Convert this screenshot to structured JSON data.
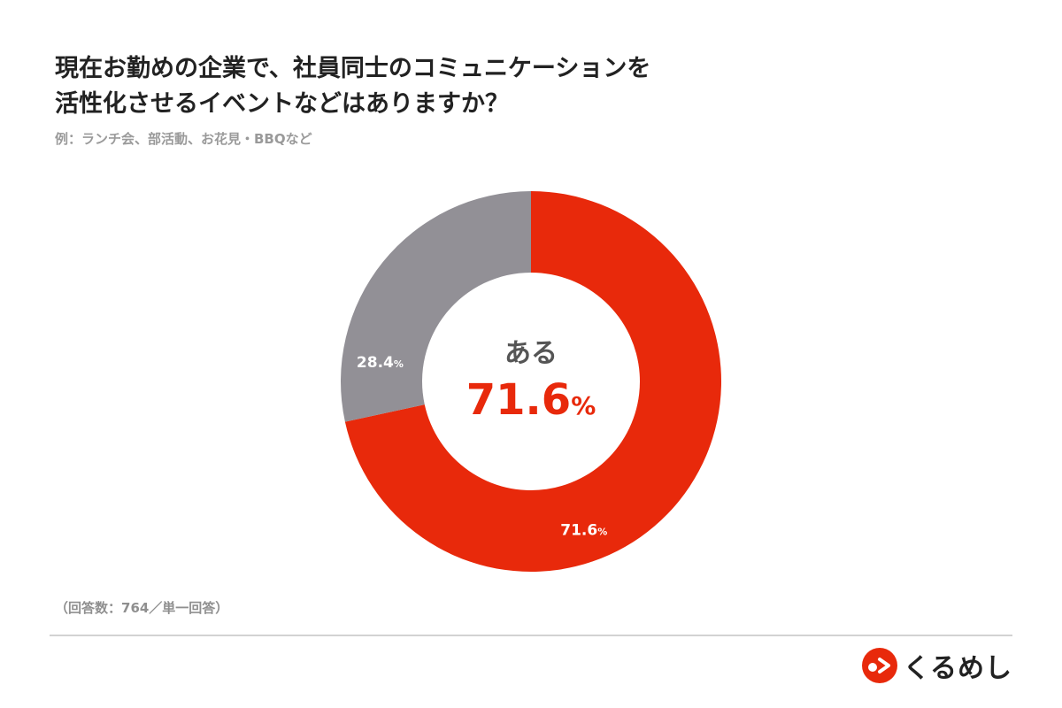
{
  "title": {
    "line1": "現在お勤めの企業で、社員同士のコミュニケーションを",
    "line2": "活性化させるイベントなどはありますか？"
  },
  "subtitle": "例：ランチ会、部活動、お花見・BBQなど",
  "note": "（回答数：764／単一回答）",
  "brand": {
    "name": "くるめし"
  },
  "colors": {
    "primary": "#e8290b",
    "secondary": "#929096",
    "text": "#222222",
    "muted": "#9a9a9a"
  },
  "chart_data": {
    "type": "pie",
    "donut": true,
    "center": {
      "label": "ある",
      "value": "71.6",
      "unit": "%"
    },
    "slices": [
      {
        "value": 71.6,
        "label": "71.6",
        "unit": "%",
        "color": "#e8290b"
      },
      {
        "value": 28.4,
        "label": "28.4",
        "unit": "%",
        "color": "#929096"
      }
    ]
  }
}
